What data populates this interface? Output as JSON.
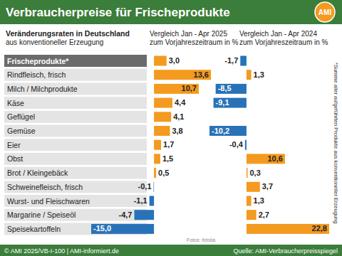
{
  "header": {
    "title": "Verbraucherpreise für Frischeprodukte",
    "logo": "AMI"
  },
  "row_header": [
    "Veränderungsraten in Deutschland",
    "aus konventioneller Erzeugung"
  ],
  "note": "*Summe aller aufgeführten Produkte aus konventioneller Erzeugung",
  "photo_credit": "Fotos: fotolia",
  "footer": {
    "left": "© AMI 2025/VB-I-100 | AMI-informiert.de",
    "right": "Quelle: AMI-Verbraucherpreisspiegel"
  },
  "chart_data": [
    {
      "type": "bar",
      "orientation": "horizontal",
      "title": "Vergleich Jan - Apr 2025",
      "subtitle": "zum Vorjahreszeitraum in %",
      "categories": [
        "Frischeprodukte*",
        "Rindfleisch, frisch",
        "Milch / Milchprodukte",
        "Käse",
        "Geflügel",
        "Gemüse",
        "Eier",
        "Obst",
        "Brot / Kleingebäck",
        "Schweinefleisch, frisch",
        "Wurst- und Fleischwaren",
        "Margarine / Speiseöl",
        "Speisekartoffeln"
      ],
      "values": [
        3.0,
        13.6,
        10.7,
        4.4,
        4.1,
        3.8,
        1.7,
        1.5,
        0.5,
        -0.1,
        -1.1,
        -4.7,
        -15.0
      ],
      "value_labels": [
        "3,0",
        "13,6",
        "10,7",
        "4,4",
        "4,1",
        "3,8",
        "1,7",
        "1,5",
        "0,5",
        "-0,1",
        "-1,1",
        "-4,7",
        "-15,0"
      ],
      "colors": [
        "#f39a1f",
        "#f39a1f",
        "#f39a1f",
        "#f39a1f",
        "#f39a1f",
        "#f39a1f",
        "#f39a1f",
        "#f39a1f",
        "#f39a1f",
        "#2872b8",
        "#2872b8",
        "#2872b8",
        "#2872b8"
      ],
      "xlim": [
        -15,
        13.6
      ],
      "data_labels": true,
      "tick_labels": false,
      "grid": false
    },
    {
      "type": "bar",
      "orientation": "horizontal",
      "title": "Vergleich Jan - Apr 2024",
      "subtitle": "zum Vorjahreszeitraum in %",
      "values": [
        -1.7,
        1.3,
        -8.5,
        -9.1,
        0.0,
        -10.2,
        -0.4,
        10.6,
        0.3,
        3.7,
        1.3,
        2.7,
        22.8
      ],
      "value_labels": [
        "-1,7",
        "1,3",
        "-8,5",
        "-9,1",
        null,
        "-10,2",
        "-0,4",
        "10,6",
        "0,3",
        "3,7",
        "1,3",
        "2,7",
        "22,8"
      ],
      "colors": [
        "#2872b8",
        "#f39a1f",
        "#2872b8",
        "#2872b8",
        "#2872b8",
        "#2872b8",
        "#2872b8",
        "#f39a1f",
        "#f39a1f",
        "#f39a1f",
        "#f39a1f",
        "#f39a1f",
        "#f39a1f"
      ],
      "xlim": [
        -10.2,
        22.8
      ],
      "data_labels": true,
      "tick_labels": false,
      "grid": false
    }
  ]
}
